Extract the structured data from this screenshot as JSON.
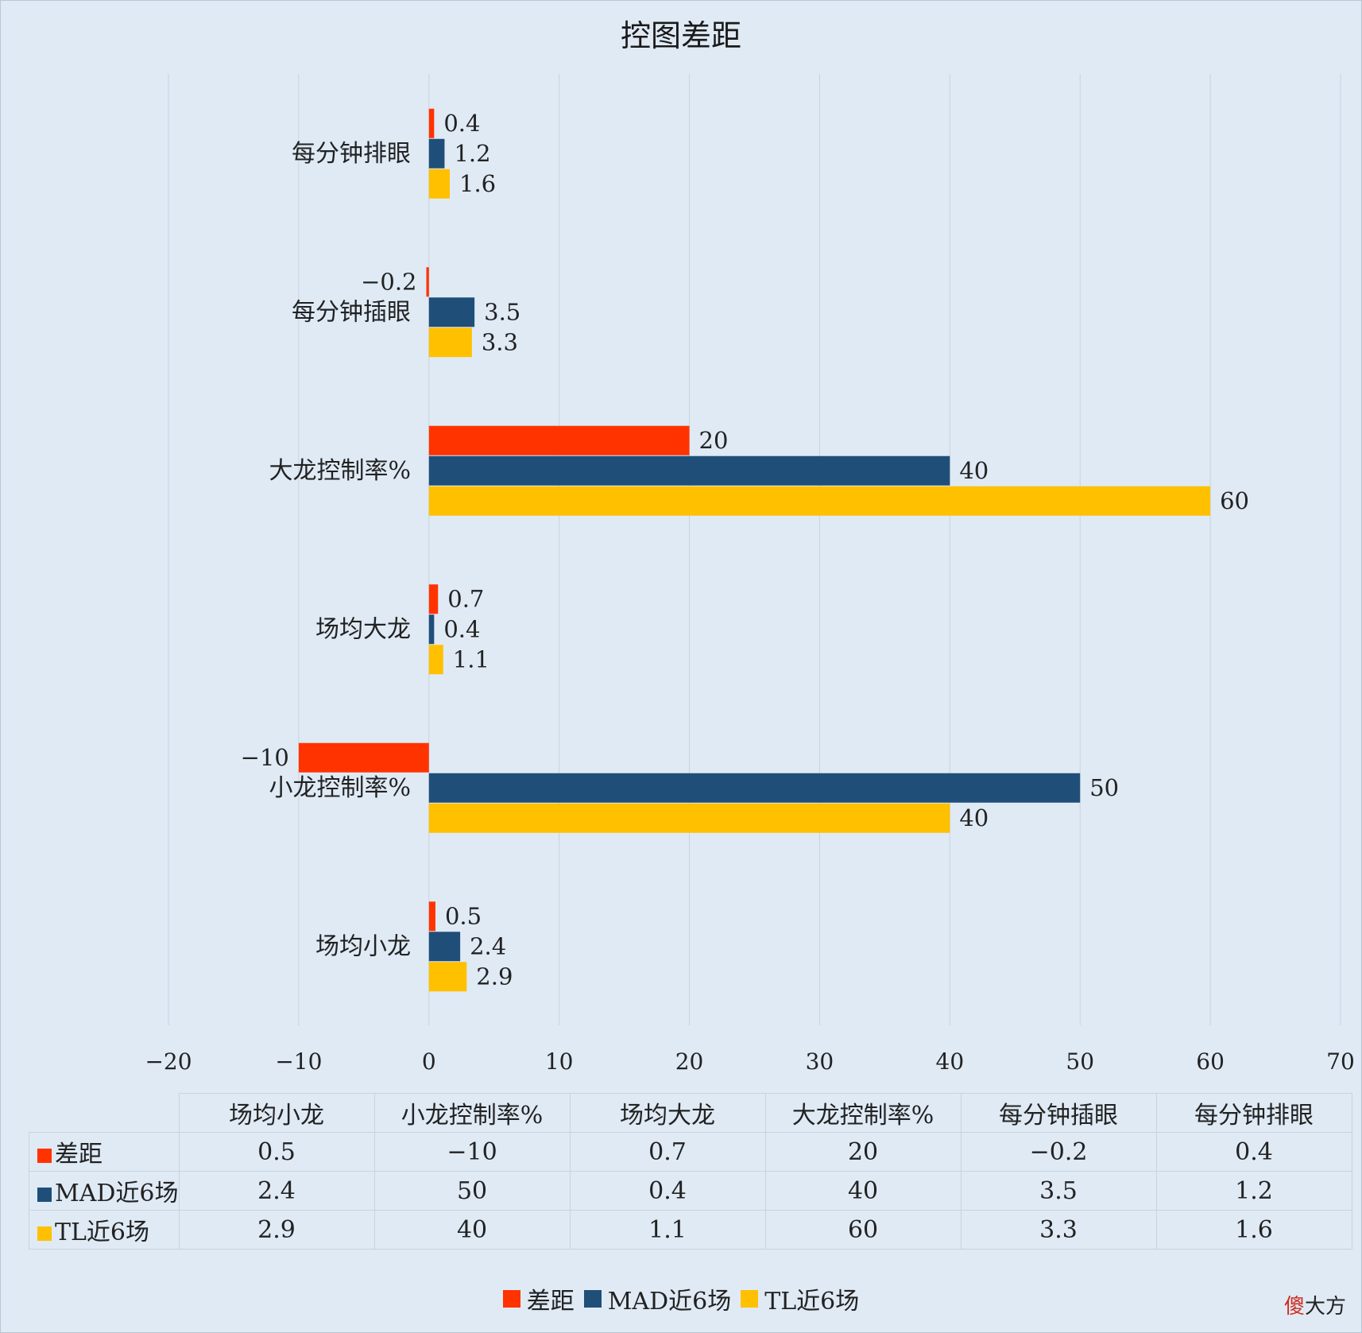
{
  "chart_data": {
    "type": "bar",
    "orientation": "horizontal",
    "title": "控图差距",
    "categories": [
      "场均小龙",
      "小龙控制率%",
      "场均大龙",
      "大龙控制率%",
      "每分钟插眼",
      "每分钟排眼"
    ],
    "series": [
      {
        "name": "差距",
        "color": "#ff3300",
        "values": [
          0.5,
          -10,
          0.7,
          20,
          -0.2,
          0.4
        ]
      },
      {
        "name": "MAD近6场",
        "color": "#1f4e79",
        "values": [
          2.4,
          50,
          0.4,
          40,
          3.5,
          1.2
        ]
      },
      {
        "name": "TL近6场",
        "color": "#ffc000",
        "values": [
          2.9,
          40,
          1.1,
          60,
          3.3,
          1.6
        ]
      }
    ],
    "xlim": [
      -20,
      70
    ],
    "xticks": [
      -20,
      -10,
      0,
      10,
      20,
      30,
      40,
      50,
      60,
      70
    ],
    "grid": true,
    "data_table": true,
    "legend_position": "bottom"
  },
  "brand": {
    "part1": "傻",
    "part2": "大方"
  }
}
